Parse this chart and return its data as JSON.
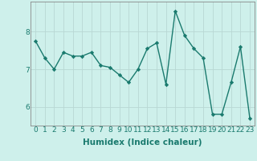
{
  "x": [
    0,
    1,
    2,
    3,
    4,
    5,
    6,
    7,
    8,
    9,
    10,
    11,
    12,
    13,
    14,
    15,
    16,
    17,
    18,
    19,
    20,
    21,
    22,
    23
  ],
  "y": [
    7.75,
    7.3,
    7.0,
    7.45,
    7.35,
    7.35,
    7.45,
    7.1,
    7.05,
    6.85,
    6.65,
    7.0,
    7.55,
    7.7,
    6.6,
    8.55,
    7.9,
    7.55,
    7.3,
    5.8,
    5.8,
    6.65,
    7.6,
    5.7
  ],
  "line_color": "#1a7a6e",
  "marker": "D",
  "marker_size": 2.2,
  "linewidth": 1.0,
  "xlabel": "Humidex (Indice chaleur)",
  "xlim": [
    -0.5,
    23.5
  ],
  "ylim": [
    5.5,
    8.8
  ],
  "yticks": [
    6,
    7,
    8
  ],
  "xticks": [
    0,
    1,
    2,
    3,
    4,
    5,
    6,
    7,
    8,
    9,
    10,
    11,
    12,
    13,
    14,
    15,
    16,
    17,
    18,
    19,
    20,
    21,
    22,
    23
  ],
  "bg_color": "#cef0eb",
  "grid_color": "#b8d8d4",
  "xlabel_fontsize": 7.5,
  "tick_fontsize": 6.5,
  "tick_color": "#1a7a6e",
  "spine_color": "#888888"
}
